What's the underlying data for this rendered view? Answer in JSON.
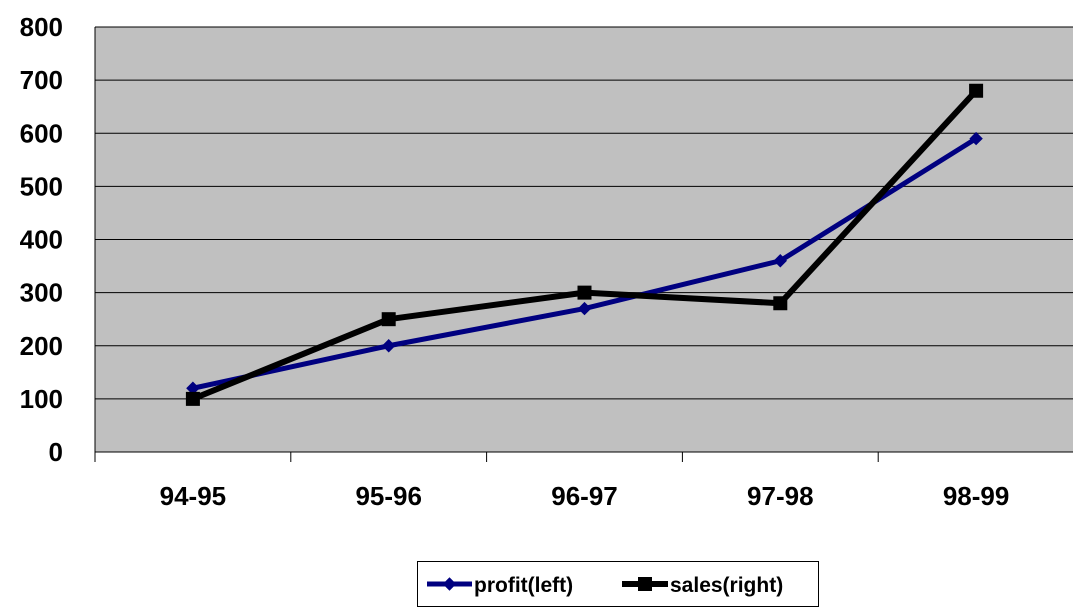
{
  "chart_data": {
    "type": "line",
    "categories": [
      "94-95",
      "95-96",
      "96-97",
      "97-98",
      "98-99"
    ],
    "series": [
      {
        "name": "profit(left)",
        "values": [
          120,
          200,
          270,
          360,
          590
        ],
        "color": "#000080",
        "marker": "diamond"
      },
      {
        "name": "sales(right)",
        "values": [
          100,
          250,
          300,
          280,
          680
        ],
        "color": "#000000",
        "marker": "square"
      }
    ],
    "ylim": [
      0,
      800
    ],
    "yticks": [
      0,
      100,
      200,
      300,
      400,
      500,
      600,
      700,
      800
    ],
    "grid": true,
    "plot_background": "#c0c0c0",
    "legend_position": "bottom"
  }
}
